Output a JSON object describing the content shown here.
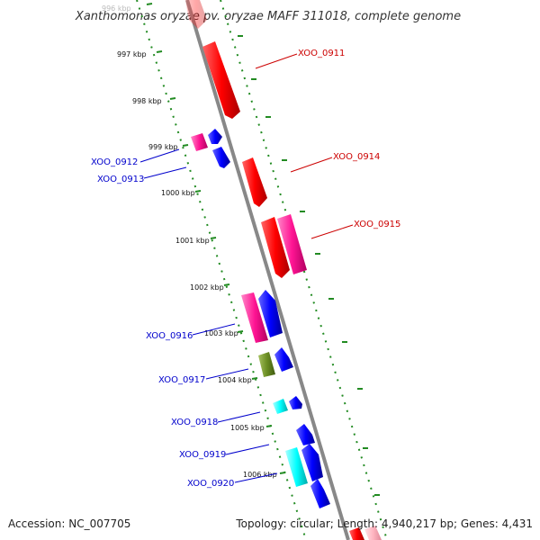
{
  "title": "Xanthomonas oryzae pv. oryzae MAFF 311018, complete genome",
  "footer": {
    "accession": "Accession: NC_007705",
    "summary": "Topology: circular; Length: 4,940,217 bp; Genes: 4,431"
  },
  "scale_labels": [
    "996 kbp",
    "997 kbp",
    "998 kbp",
    "999 kbp",
    "1000 kbp",
    "1001 kbp",
    "1002 kbp",
    "1003 kbp",
    "1004 kbp",
    "1005 kbp",
    "1006 kbp"
  ],
  "gene_labels": [
    "XOO_0911",
    "XOO_0912",
    "XOO_0913",
    "XOO_0914",
    "XOO_0915",
    "XOO_0916",
    "XOO_0917",
    "XOO_0918",
    "XOO_0919",
    "XOO_0920"
  ],
  "colors": {
    "red": "#ff0000",
    "magenta": "#ff1493",
    "pink": "#ffb6c1",
    "blue": "#0000ff",
    "cyan": "#00ffff",
    "olive": "#6b8e23",
    "backbone": "#888888",
    "ruler": "#228b22",
    "label_red": "#cc0000",
    "label_blue": "#0000cc"
  }
}
